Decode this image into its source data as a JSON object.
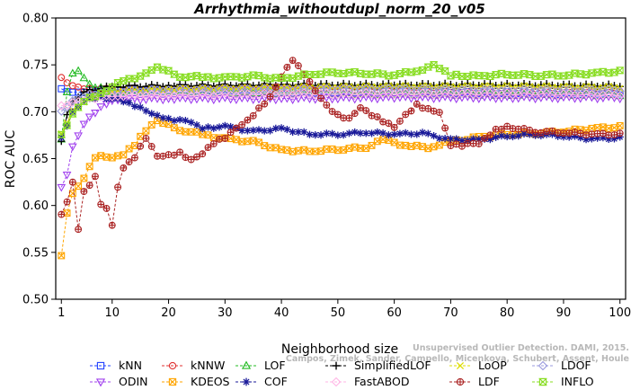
{
  "chart_data": {
    "type": "line",
    "title": "Arrhythmia_withoutdupl_norm_20_v05",
    "xlabel": "Neighborhood size",
    "ylabel": "ROC AUC",
    "xlim": [
      0,
      101
    ],
    "ylim": [
      0.5,
      0.8
    ],
    "xticks": [
      "1",
      "10",
      "20",
      "30",
      "40",
      "50",
      "60",
      "70",
      "80",
      "90",
      "100"
    ],
    "yticks": [
      "0.50",
      "0.55",
      "0.60",
      "0.65",
      "0.70",
      "0.75",
      "0.80"
    ],
    "legend_position": "bottom",
    "credit": {
      "line1": "Unsupervised Outlier Detection. DAMI, 2015.",
      "line2": "Campos, Zimek, Sander, Campello, Micenkova, Schubert, Assent, Houle"
    },
    "series": [
      {
        "name": "kNN",
        "color": "#1f3fff",
        "marker": "square",
        "anchors": [
          [
            1,
            0.724
          ],
          [
            3,
            0.721
          ],
          [
            6,
            0.722
          ],
          [
            10,
            0.723
          ],
          [
            20,
            0.723
          ],
          [
            40,
            0.722
          ],
          [
            60,
            0.721
          ],
          [
            80,
            0.72
          ],
          [
            100,
            0.719
          ]
        ]
      },
      {
        "name": "kNNW",
        "color": "#e03030",
        "marker": "circle",
        "anchors": [
          [
            1,
            0.736
          ],
          [
            3,
            0.728
          ],
          [
            6,
            0.724
          ],
          [
            10,
            0.724
          ],
          [
            20,
            0.725
          ],
          [
            40,
            0.725
          ],
          [
            60,
            0.724
          ],
          [
            80,
            0.723
          ],
          [
            100,
            0.723
          ]
        ]
      },
      {
        "name": "LOF",
        "color": "#22bb22",
        "marker": "triangle",
        "anchors": [
          [
            1,
            0.67
          ],
          [
            2,
            0.722
          ],
          [
            3,
            0.74
          ],
          [
            4,
            0.744
          ],
          [
            6,
            0.728
          ],
          [
            10,
            0.722
          ],
          [
            20,
            0.722
          ],
          [
            40,
            0.72
          ],
          [
            60,
            0.719
          ],
          [
            80,
            0.718
          ],
          [
            100,
            0.718
          ]
        ]
      },
      {
        "name": "SimplifiedLOF",
        "color": "#000000",
        "marker": "plus",
        "anchors": [
          [
            1,
            0.668
          ],
          [
            2,
            0.698
          ],
          [
            3,
            0.71
          ],
          [
            5,
            0.722
          ],
          [
            10,
            0.727
          ],
          [
            20,
            0.728
          ],
          [
            40,
            0.729
          ],
          [
            60,
            0.729
          ],
          [
            80,
            0.729
          ],
          [
            100,
            0.728
          ]
        ]
      },
      {
        "name": "LoOP",
        "color": "#dddd00",
        "marker": "x",
        "anchors": [
          [
            1,
            0.676
          ],
          [
            3,
            0.702
          ],
          [
            6,
            0.716
          ],
          [
            10,
            0.722
          ],
          [
            20,
            0.724
          ],
          [
            40,
            0.726
          ],
          [
            60,
            0.727
          ],
          [
            80,
            0.727
          ],
          [
            100,
            0.726
          ]
        ]
      },
      {
        "name": "LDOF",
        "color": "#9999dd",
        "marker": "diamond",
        "anchors": [
          [
            1,
            0.7
          ],
          [
            3,
            0.712
          ],
          [
            6,
            0.718
          ],
          [
            10,
            0.721
          ],
          [
            20,
            0.723
          ],
          [
            40,
            0.724
          ],
          [
            60,
            0.724
          ],
          [
            80,
            0.723
          ],
          [
            100,
            0.723
          ]
        ]
      },
      {
        "name": "ODIN",
        "color": "#a040ee",
        "marker": "triangle-down",
        "anchors": [
          [
            1,
            0.619
          ],
          [
            2,
            0.634
          ],
          [
            3,
            0.662
          ],
          [
            5,
            0.688
          ],
          [
            7,
            0.7
          ],
          [
            10,
            0.713
          ],
          [
            20,
            0.714
          ],
          [
            40,
            0.714
          ],
          [
            60,
            0.715
          ],
          [
            80,
            0.715
          ],
          [
            100,
            0.715
          ]
        ]
      },
      {
        "name": "KDEOS",
        "color": "#ffa500",
        "marker": "square-x",
        "anchors": [
          [
            1,
            0.546
          ],
          [
            2,
            0.593
          ],
          [
            3,
            0.612
          ],
          [
            5,
            0.63
          ],
          [
            7,
            0.652
          ],
          [
            10,
            0.652
          ],
          [
            12,
            0.655
          ],
          [
            14,
            0.665
          ],
          [
            16,
            0.68
          ],
          [
            18,
            0.69
          ],
          [
            22,
            0.681
          ],
          [
            26,
            0.676
          ],
          [
            30,
            0.671
          ],
          [
            35,
            0.668
          ],
          [
            40,
            0.659
          ],
          [
            45,
            0.658
          ],
          [
            50,
            0.66
          ],
          [
            55,
            0.662
          ],
          [
            58,
            0.67
          ],
          [
            62,
            0.664
          ],
          [
            66,
            0.662
          ],
          [
            70,
            0.668
          ],
          [
            75,
            0.673
          ],
          [
            80,
            0.676
          ],
          [
            85,
            0.677
          ],
          [
            90,
            0.679
          ],
          [
            95,
            0.682
          ],
          [
            100,
            0.684
          ]
        ]
      },
      {
        "name": "COF",
        "color": "#1a1a99",
        "marker": "asterisk",
        "anchors": [
          [
            1,
            0.672
          ],
          [
            3,
            0.7
          ],
          [
            5,
            0.712
          ],
          [
            8,
            0.716
          ],
          [
            11,
            0.713
          ],
          [
            14,
            0.706
          ],
          [
            17,
            0.699
          ],
          [
            20,
            0.692
          ],
          [
            23,
            0.69
          ],
          [
            26,
            0.683
          ],
          [
            30,
            0.684
          ],
          [
            35,
            0.679
          ],
          [
            40,
            0.682
          ],
          [
            45,
            0.676
          ],
          [
            50,
            0.676
          ],
          [
            55,
            0.678
          ],
          [
            60,
            0.676
          ],
          [
            65,
            0.677
          ],
          [
            70,
            0.67
          ],
          [
            75,
            0.67
          ],
          [
            80,
            0.674
          ],
          [
            85,
            0.676
          ],
          [
            90,
            0.674
          ],
          [
            95,
            0.671
          ],
          [
            100,
            0.672
          ]
        ]
      },
      {
        "name": "FastABOD",
        "color": "#ffb6e6",
        "marker": "diamond",
        "anchors": [
          [
            1,
            0.706
          ],
          [
            3,
            0.71
          ],
          [
            6,
            0.714
          ],
          [
            10,
            0.717
          ],
          [
            20,
            0.718
          ],
          [
            40,
            0.719
          ],
          [
            60,
            0.719
          ],
          [
            80,
            0.719
          ],
          [
            100,
            0.718
          ]
        ]
      },
      {
        "name": "LDF",
        "color": "#aa2222",
        "marker": "circle-plus",
        "anchors": [
          [
            1,
            0.59
          ],
          [
            2,
            0.605
          ],
          [
            3,
            0.624
          ],
          [
            4,
            0.575
          ],
          [
            5,
            0.615
          ],
          [
            6,
            0.621
          ],
          [
            7,
            0.632
          ],
          [
            8,
            0.6
          ],
          [
            9,
            0.598
          ],
          [
            10,
            0.578
          ],
          [
            11,
            0.62
          ],
          [
            12,
            0.64
          ],
          [
            14,
            0.652
          ],
          [
            16,
            0.672
          ],
          [
            18,
            0.652
          ],
          [
            20,
            0.653
          ],
          [
            22,
            0.656
          ],
          [
            24,
            0.649
          ],
          [
            26,
            0.656
          ],
          [
            28,
            0.667
          ],
          [
            30,
            0.672
          ],
          [
            32,
            0.682
          ],
          [
            34,
            0.69
          ],
          [
            36,
            0.703
          ],
          [
            38,
            0.716
          ],
          [
            40,
            0.738
          ],
          [
            42,
            0.756
          ],
          [
            44,
            0.74
          ],
          [
            46,
            0.722
          ],
          [
            48,
            0.706
          ],
          [
            50,
            0.696
          ],
          [
            52,
            0.693
          ],
          [
            54,
            0.705
          ],
          [
            56,
            0.697
          ],
          [
            58,
            0.69
          ],
          [
            60,
            0.683
          ],
          [
            62,
            0.696
          ],
          [
            64,
            0.707
          ],
          [
            66,
            0.703
          ],
          [
            68,
            0.7
          ],
          [
            70,
            0.665
          ],
          [
            72,
            0.664
          ],
          [
            75,
            0.667
          ],
          [
            78,
            0.681
          ],
          [
            80,
            0.684
          ],
          [
            85,
            0.679
          ],
          [
            90,
            0.678
          ],
          [
            95,
            0.676
          ],
          [
            100,
            0.676
          ]
        ]
      },
      {
        "name": "INFLO",
        "color": "#88dd22",
        "marker": "hourglass",
        "anchors": [
          [
            1,
            0.675
          ],
          [
            3,
            0.698
          ],
          [
            5,
            0.712
          ],
          [
            8,
            0.72
          ],
          [
            12,
            0.733
          ],
          [
            16,
            0.74
          ],
          [
            18,
            0.747
          ],
          [
            22,
            0.738
          ],
          [
            26,
            0.737
          ],
          [
            30,
            0.736
          ],
          [
            35,
            0.738
          ],
          [
            40,
            0.735
          ],
          [
            45,
            0.74
          ],
          [
            50,
            0.742
          ],
          [
            55,
            0.741
          ],
          [
            60,
            0.739
          ],
          [
            64,
            0.744
          ],
          [
            67,
            0.749
          ],
          [
            70,
            0.739
          ],
          [
            75,
            0.738
          ],
          [
            80,
            0.74
          ],
          [
            85,
            0.739
          ],
          [
            90,
            0.739
          ],
          [
            95,
            0.741
          ],
          [
            100,
            0.743
          ]
        ]
      }
    ]
  }
}
